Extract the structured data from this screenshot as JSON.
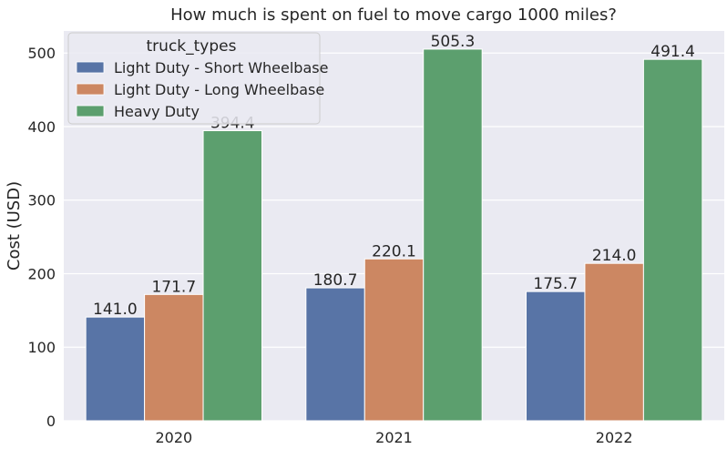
{
  "chart_data": {
    "type": "bar",
    "title": "How much is spent on fuel to move cargo 1000 miles?",
    "xlabel": "",
    "ylabel": "Cost (USD)",
    "categories": [
      "2020",
      "2021",
      "2022"
    ],
    "ylim": [
      0,
      530
    ],
    "yticks": [
      0,
      100,
      200,
      300,
      400,
      500
    ],
    "grid": true,
    "legend": {
      "title": "truck_types",
      "placement": "top-left"
    },
    "series": [
      {
        "name": "Light Duty - Short Wheelbase",
        "color": "#5874a6",
        "values": [
          141.0,
          180.7,
          175.7
        ],
        "labels": [
          "141.0",
          "180.7",
          "175.7"
        ]
      },
      {
        "name": "Light Duty - Long Wheelbase",
        "color": "#cc8762",
        "values": [
          171.7,
          220.1,
          214.0
        ],
        "labels": [
          "171.7",
          "220.1",
          "214.0"
        ]
      },
      {
        "name": "Heavy Duty",
        "color": "#5c9f6e",
        "values": [
          394.4,
          505.3,
          491.4
        ],
        "labels": [
          "394.4",
          "505.3",
          "491.4"
        ]
      }
    ],
    "background_color": "#eaeaf2"
  }
}
